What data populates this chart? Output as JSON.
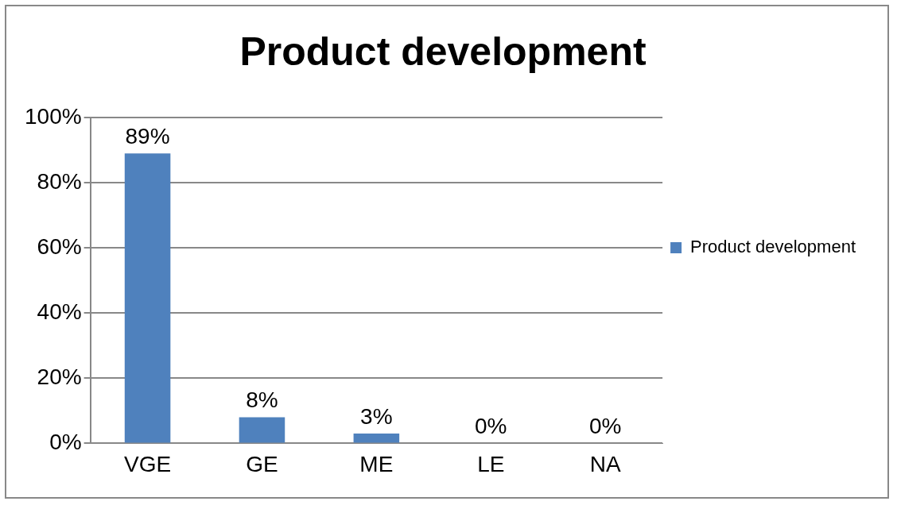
{
  "chart_data": {
    "type": "bar",
    "title": "Product development",
    "categories": [
      "VGE",
      "GE",
      "ME",
      "LE",
      "NA"
    ],
    "series": [
      {
        "name": "Product development",
        "color": "#4f81bd",
        "values": [
          89,
          8,
          3,
          0,
          0
        ],
        "value_labels": [
          "89%",
          "8%",
          "3%",
          "0%",
          "0%"
        ]
      }
    ],
    "ylim": [
      0,
      100
    ],
    "yticks": [
      {
        "value": 0,
        "label": "0%"
      },
      {
        "value": 20,
        "label": "20%"
      },
      {
        "value": 40,
        "label": "40%"
      },
      {
        "value": 60,
        "label": "60%"
      },
      {
        "value": 80,
        "label": "80%"
      },
      {
        "value": 100,
        "label": "100%"
      }
    ],
    "grid": "y",
    "legend": "right"
  }
}
